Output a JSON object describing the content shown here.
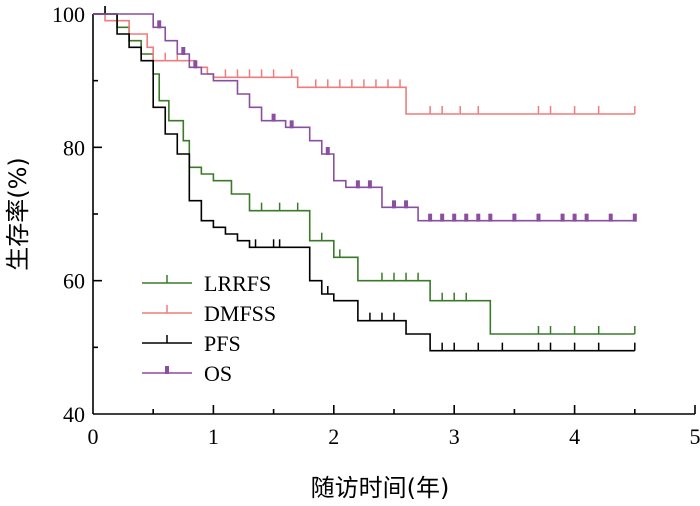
{
  "chart_data": {
    "type": "line",
    "subtype": "kaplan-meier step",
    "xlabel": "随访时间(年)",
    "ylabel": "生存率(%)",
    "xlim": [
      0,
      5
    ],
    "ylim": [
      40,
      100
    ],
    "xticks": [
      "0",
      "1",
      "2",
      "3",
      "4",
      "5"
    ],
    "yticks": [
      "40",
      "60",
      "80",
      "100"
    ],
    "grid": false,
    "legend_position": "bottom-left",
    "series": [
      {
        "name": "LRRFS",
        "color": "#3b7a2a",
        "censor_style": "tick",
        "steps": [
          [
            0,
            100
          ],
          [
            0.2,
            98
          ],
          [
            0.3,
            96
          ],
          [
            0.4,
            94
          ],
          [
            0.5,
            91
          ],
          [
            0.55,
            87
          ],
          [
            0.63,
            84
          ],
          [
            0.75,
            81
          ],
          [
            0.8,
            77
          ],
          [
            0.9,
            76
          ],
          [
            1.0,
            75
          ],
          [
            1.15,
            73
          ],
          [
            1.3,
            70.5
          ],
          [
            1.8,
            66
          ],
          [
            2.0,
            63.5
          ],
          [
            2.2,
            60
          ],
          [
            2.8,
            57
          ],
          [
            3.3,
            52
          ],
          [
            4.5,
            52
          ]
        ],
        "censored": [
          [
            0.1,
            100
          ],
          [
            1.4,
            70.5
          ],
          [
            1.55,
            70.5
          ],
          [
            1.7,
            70.5
          ],
          [
            1.9,
            66
          ],
          [
            2.05,
            63.5
          ],
          [
            2.4,
            60
          ],
          [
            2.5,
            60
          ],
          [
            2.6,
            60
          ],
          [
            2.7,
            60
          ],
          [
            2.9,
            57
          ],
          [
            3.0,
            57
          ],
          [
            3.1,
            57
          ],
          [
            3.7,
            52
          ],
          [
            3.8,
            52
          ],
          [
            4.0,
            52
          ],
          [
            4.2,
            52
          ],
          [
            4.5,
            52
          ]
        ]
      },
      {
        "name": "DMFSS",
        "color": "#ee7d7d",
        "censor_style": "tick",
        "steps": [
          [
            0,
            100
          ],
          [
            0.1,
            99
          ],
          [
            0.3,
            97
          ],
          [
            0.45,
            95
          ],
          [
            0.5,
            93
          ],
          [
            0.85,
            92
          ],
          [
            0.95,
            91
          ],
          [
            1.0,
            90.5
          ],
          [
            1.7,
            89
          ],
          [
            2.6,
            85
          ],
          [
            4.5,
            85
          ]
        ],
        "censored": [
          [
            0.6,
            93
          ],
          [
            0.7,
            93
          ],
          [
            1.1,
            90.5
          ],
          [
            1.2,
            90.5
          ],
          [
            1.3,
            90.5
          ],
          [
            1.4,
            90.5
          ],
          [
            1.5,
            90.5
          ],
          [
            1.65,
            90.5
          ],
          [
            1.85,
            89
          ],
          [
            1.95,
            89
          ],
          [
            2.05,
            89
          ],
          [
            2.15,
            89
          ],
          [
            2.25,
            89
          ],
          [
            2.35,
            89
          ],
          [
            2.45,
            89
          ],
          [
            2.55,
            89
          ],
          [
            2.8,
            85
          ],
          [
            2.9,
            85
          ],
          [
            3.05,
            85
          ],
          [
            3.2,
            85
          ],
          [
            3.7,
            85
          ],
          [
            3.8,
            85
          ],
          [
            4.0,
            85
          ],
          [
            4.2,
            85
          ],
          [
            4.5,
            85
          ]
        ]
      },
      {
        "name": "PFS",
        "color": "#000000",
        "censor_style": "tick",
        "steps": [
          [
            0,
            100
          ],
          [
            0.2,
            97
          ],
          [
            0.3,
            95
          ],
          [
            0.4,
            93
          ],
          [
            0.5,
            86
          ],
          [
            0.6,
            82
          ],
          [
            0.7,
            79
          ],
          [
            0.8,
            72
          ],
          [
            0.9,
            69
          ],
          [
            1.0,
            68
          ],
          [
            1.1,
            67
          ],
          [
            1.2,
            66
          ],
          [
            1.3,
            65
          ],
          [
            1.8,
            60
          ],
          [
            1.9,
            58
          ],
          [
            2.0,
            57
          ],
          [
            2.2,
            54
          ],
          [
            2.6,
            52
          ],
          [
            2.8,
            49.5
          ],
          [
            4.5,
            49.5
          ]
        ],
        "censored": [
          [
            0.1,
            100
          ],
          [
            1.35,
            65
          ],
          [
            1.5,
            65
          ],
          [
            1.55,
            65
          ],
          [
            1.95,
            58
          ],
          [
            2.3,
            54
          ],
          [
            2.4,
            54
          ],
          [
            2.5,
            54
          ],
          [
            2.9,
            49.5
          ],
          [
            3.0,
            49.5
          ],
          [
            3.2,
            49.5
          ],
          [
            3.4,
            49.5
          ],
          [
            3.7,
            49.5
          ],
          [
            3.8,
            49.5
          ],
          [
            4.0,
            49.5
          ],
          [
            4.2,
            49.5
          ],
          [
            4.5,
            49.5
          ]
        ]
      },
      {
        "name": "OS",
        "color": "#8a4f9e",
        "censor_style": "square",
        "steps": [
          [
            0,
            100
          ],
          [
            0.5,
            98
          ],
          [
            0.6,
            96
          ],
          [
            0.7,
            94
          ],
          [
            0.8,
            92
          ],
          [
            0.9,
            91
          ],
          [
            1.0,
            90
          ],
          [
            1.2,
            88
          ],
          [
            1.3,
            86
          ],
          [
            1.4,
            84
          ],
          [
            1.6,
            83
          ],
          [
            1.8,
            81
          ],
          [
            1.9,
            79
          ],
          [
            2.0,
            75
          ],
          [
            2.1,
            74
          ],
          [
            2.4,
            71
          ],
          [
            2.7,
            69
          ],
          [
            4.5,
            69
          ]
        ],
        "censored": [
          [
            0.55,
            98
          ],
          [
            0.75,
            94
          ],
          [
            0.85,
            92
          ],
          [
            1.5,
            84
          ],
          [
            1.65,
            83
          ],
          [
            1.95,
            79
          ],
          [
            2.2,
            74
          ],
          [
            2.3,
            74
          ],
          [
            2.5,
            71
          ],
          [
            2.6,
            71
          ],
          [
            2.8,
            69
          ],
          [
            2.9,
            69
          ],
          [
            3.0,
            69
          ],
          [
            3.1,
            69
          ],
          [
            3.2,
            69
          ],
          [
            3.3,
            69
          ],
          [
            3.5,
            69
          ],
          [
            3.7,
            69
          ],
          [
            3.9,
            69
          ],
          [
            4.0,
            69
          ],
          [
            4.1,
            69
          ],
          [
            4.3,
            69
          ],
          [
            4.5,
            69
          ]
        ]
      }
    ]
  }
}
